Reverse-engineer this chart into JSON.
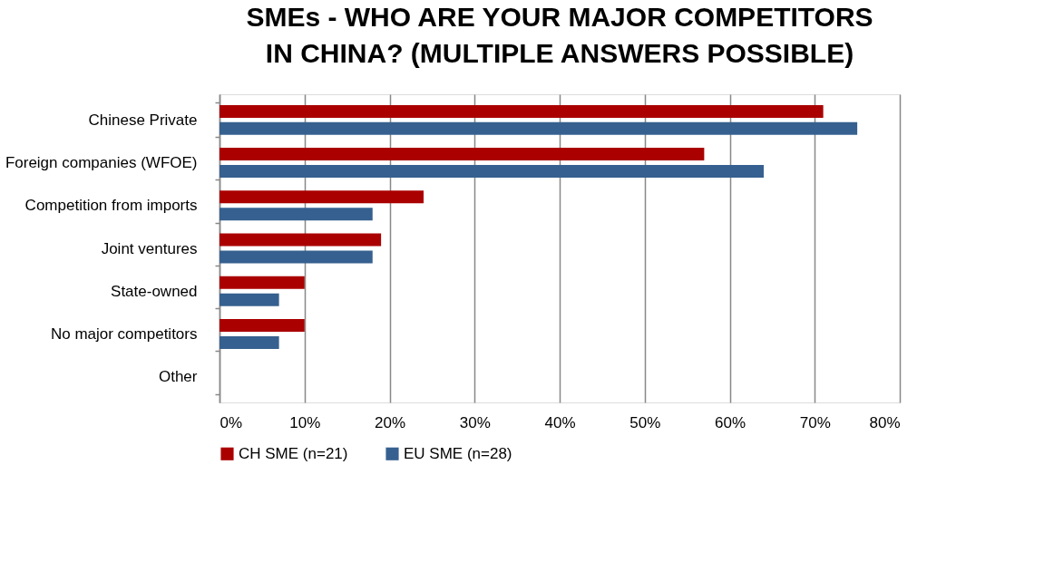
{
  "chart_data": {
    "type": "bar",
    "orientation": "horizontal",
    "title": "SMEs - WHO ARE YOUR MAJOR COMPETITORS IN CHINA? (MULTIPLE ANSWERS POSSIBLE)",
    "categories": [
      "Chinese Private",
      "Foreign companies (WFOE)",
      "Competition from imports",
      "Joint ventures",
      "State-owned",
      "No major competitors",
      "Other"
    ],
    "series": [
      {
        "name": "CH SME (n=21)",
        "color": "#aa0000",
        "values": [
          71,
          57,
          24,
          19,
          10,
          10,
          0
        ]
      },
      {
        "name": "EU SME (n=28)",
        "color": "#36608f",
        "values": [
          75,
          64,
          18,
          18,
          7,
          7,
          0
        ]
      }
    ],
    "xlim": [
      0,
      80
    ],
    "xticks": [
      {
        "value": 0,
        "label": "0%"
      },
      {
        "value": 10,
        "label": "10%"
      },
      {
        "value": 20,
        "label": "20%"
      },
      {
        "value": 30,
        "label": "30%"
      },
      {
        "value": 40,
        "label": "40%"
      },
      {
        "value": 50,
        "label": "50%"
      },
      {
        "value": 60,
        "label": "60%"
      },
      {
        "value": 70,
        "label": "70%"
      },
      {
        "value": 80,
        "label": "80%"
      }
    ],
    "grid": "x",
    "legend": "bottom"
  }
}
